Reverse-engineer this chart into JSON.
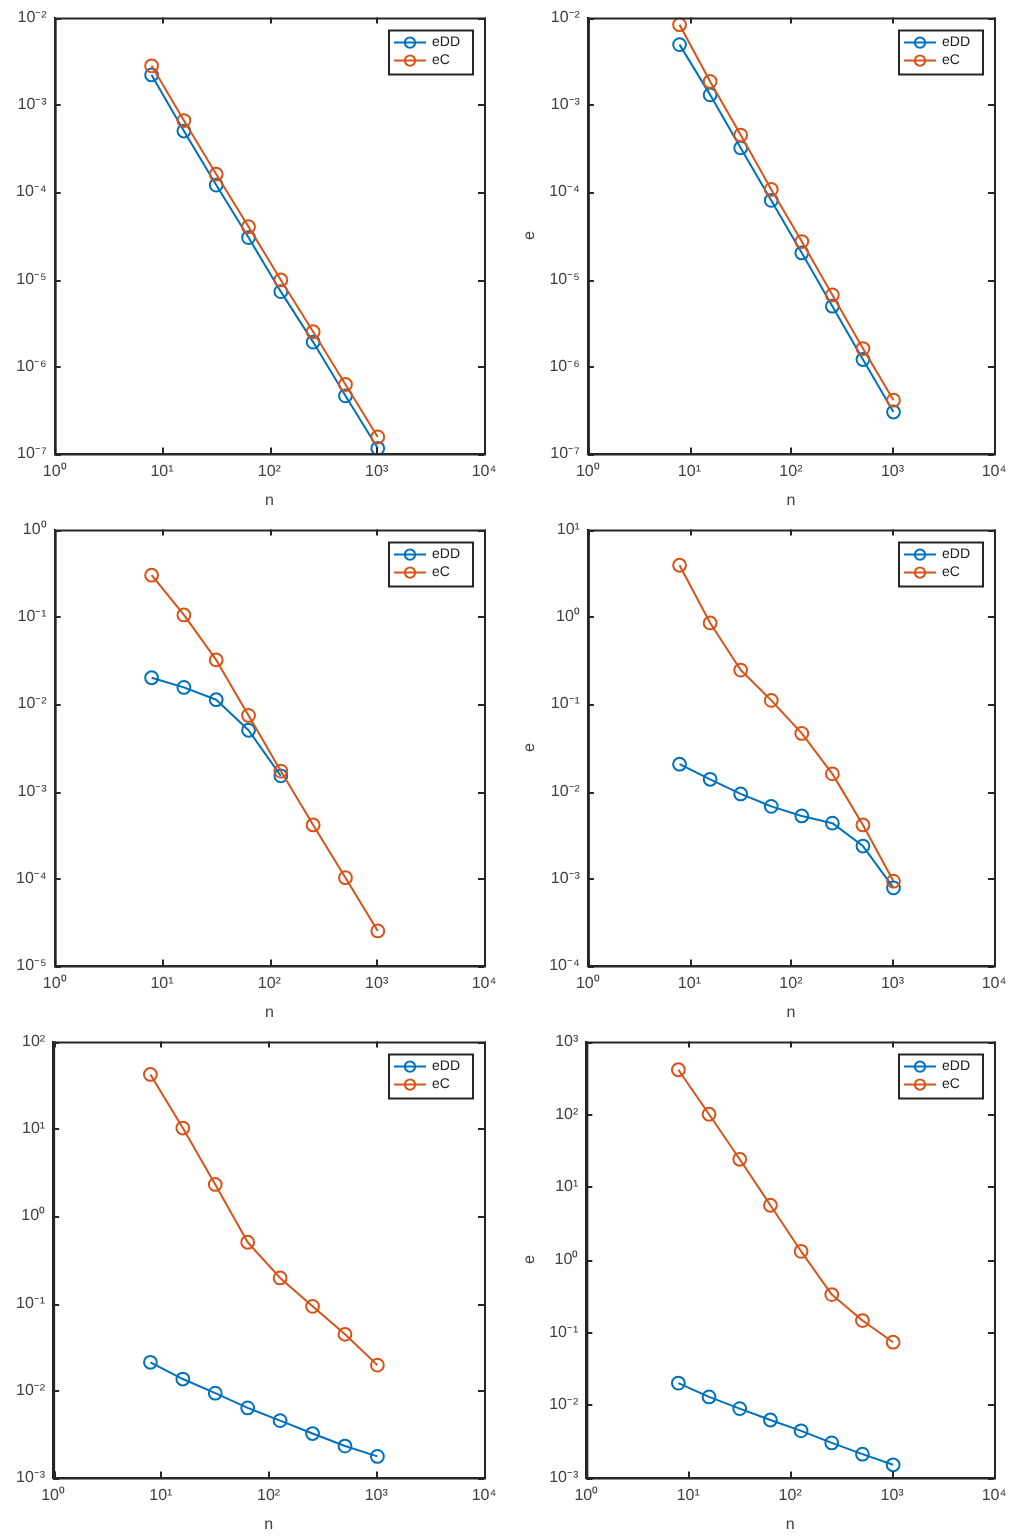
{
  "chart_data": [
    {
      "type": "line",
      "xlabel": "n",
      "log": "xy",
      "grid": false,
      "legend": "top right",
      "marker": "circle",
      "line_style": "solid",
      "x": [
        8,
        16,
        32,
        64,
        128,
        256,
        512,
        1024
      ],
      "xlim": [
        1,
        10000
      ],
      "xticks": [
        {
          "value": 1,
          "label": "10⁰"
        },
        {
          "value": 10,
          "label": "10¹"
        },
        {
          "value": 100,
          "label": "10²"
        },
        {
          "value": 1000,
          "label": "10³"
        },
        {
          "value": 10000,
          "label": "10⁴"
        }
      ],
      "ylim": [
        1e-07,
        0.01
      ],
      "yticks": [
        {
          "value": 1e-07,
          "label": "10⁻⁷"
        },
        {
          "value": 1e-06,
          "label": "10⁻⁶"
        },
        {
          "value": 1e-05,
          "label": "10⁻⁵"
        },
        {
          "value": 0.0001,
          "label": "10⁻⁴"
        },
        {
          "value": 0.001,
          "label": "10⁻³"
        },
        {
          "value": 0.01,
          "label": "10⁻²"
        }
      ],
      "series": [
        {
          "name": "eDD",
          "color": "#0072bd",
          "values": [
            0.0022,
            0.0005,
            0.00012,
            3e-05,
            7.2e-06,
            1.9e-06,
            4.6e-07,
            1.15e-07
          ]
        },
        {
          "name": "eC",
          "color": "#d95319",
          "values": [
            0.0028,
            0.00066,
            0.00016,
            4e-05,
            9.8e-06,
            2.5e-06,
            6.2e-07,
            1.55e-07
          ]
        }
      ]
    },
    {
      "type": "line",
      "xlabel": "n",
      "ylabel": "e",
      "log": "xy",
      "grid": false,
      "legend": "top right",
      "marker": "circle",
      "line_style": "solid",
      "x": [
        8,
        16,
        32,
        64,
        128,
        256,
        512,
        1024
      ],
      "xlim": [
        1,
        10000
      ],
      "xticks": [
        {
          "value": 1,
          "label": "10⁰"
        },
        {
          "value": 10,
          "label": "10¹"
        },
        {
          "value": 100,
          "label": "10²"
        },
        {
          "value": 1000,
          "label": "10³"
        },
        {
          "value": 10000,
          "label": "10⁴"
        }
      ],
      "ylim": [
        1e-07,
        0.01
      ],
      "yticks": [
        {
          "value": 1e-07,
          "label": "10⁻⁷"
        },
        {
          "value": 1e-06,
          "label": "10⁻⁶"
        },
        {
          "value": 1e-05,
          "label": "10⁻⁵"
        },
        {
          "value": 0.0001,
          "label": "10⁻⁴"
        },
        {
          "value": 0.001,
          "label": "10⁻³"
        },
        {
          "value": 0.01,
          "label": "10⁻²"
        }
      ],
      "series": [
        {
          "name": "eDD",
          "color": "#0072bd",
          "values": [
            0.0049,
            0.0013,
            0.00032,
            8e-05,
            2e-05,
            4.9e-06,
            1.2e-06,
            3e-07
          ]
        },
        {
          "name": "eC",
          "color": "#d95319",
          "values": [
            0.0083,
            0.00185,
            0.00045,
            0.000107,
            2.7e-05,
            6.6e-06,
            1.6e-06,
            4.1e-07
          ]
        }
      ]
    },
    {
      "type": "line",
      "xlabel": "n",
      "log": "xy",
      "grid": false,
      "legend": "top right",
      "marker": "circle",
      "line_style": "solid",
      "x": [
        8,
        16,
        32,
        64,
        128,
        256,
        512,
        1024
      ],
      "xlim": [
        1,
        10000
      ],
      "xticks": [
        {
          "value": 1,
          "label": "10⁰"
        },
        {
          "value": 10,
          "label": "10¹"
        },
        {
          "value": 100,
          "label": "10²"
        },
        {
          "value": 1000,
          "label": "10³"
        },
        {
          "value": 10000,
          "label": "10⁴"
        }
      ],
      "ylim": [
        1e-05,
        1
      ],
      "yticks": [
        {
          "value": 1e-05,
          "label": "10⁻⁵"
        },
        {
          "value": 0.0001,
          "label": "10⁻⁴"
        },
        {
          "value": 0.001,
          "label": "10⁻³"
        },
        {
          "value": 0.01,
          "label": "10⁻²"
        },
        {
          "value": 0.1,
          "label": "10⁻¹"
        },
        {
          "value": 1,
          "label": "10⁰"
        }
      ],
      "series": [
        {
          "name": "eDD",
          "color": "#0072bd",
          "values": [
            0.02,
            0.0155,
            0.0112,
            0.005,
            0.0015,
            null,
            null,
            null
          ]
        },
        {
          "name": "eC",
          "color": "#d95319",
          "values": [
            0.3,
            0.105,
            0.032,
            0.0074,
            0.0017,
            0.00041,
            0.000102,
            2.5e-05
          ]
        }
      ]
    },
    {
      "type": "line",
      "xlabel": "n",
      "ylabel": "e",
      "log": "xy",
      "grid": false,
      "legend": "top right",
      "marker": "circle",
      "line_style": "solid",
      "x": [
        8,
        16,
        32,
        64,
        128,
        256,
        512,
        1024
      ],
      "xlim": [
        1,
        10000
      ],
      "xticks": [
        {
          "value": 1,
          "label": "10⁰"
        },
        {
          "value": 10,
          "label": "10¹"
        },
        {
          "value": 100,
          "label": "10²"
        },
        {
          "value": 1000,
          "label": "10³"
        },
        {
          "value": 10000,
          "label": "10⁴"
        }
      ],
      "ylim": [
        0.0001,
        10
      ],
      "yticks": [
        {
          "value": 0.0001,
          "label": "10⁻⁴"
        },
        {
          "value": 0.001,
          "label": "10⁻³"
        },
        {
          "value": 0.01,
          "label": "10⁻²"
        },
        {
          "value": 0.1,
          "label": "10⁻¹"
        },
        {
          "value": 1,
          "label": "10⁰"
        },
        {
          "value": 10,
          "label": "10¹"
        }
      ],
      "series": [
        {
          "name": "eDD",
          "color": "#0072bd",
          "values": [
            0.0204,
            0.0137,
            0.0093,
            0.0067,
            0.0052,
            0.0043,
            0.00235,
            0.00078
          ]
        },
        {
          "name": "eC",
          "color": "#d95319",
          "values": [
            3.9,
            0.85,
            0.245,
            0.11,
            0.046,
            0.0158,
            0.0041,
            0.00093
          ]
        }
      ]
    },
    {
      "type": "line",
      "xlabel": "n",
      "log": "xy",
      "grid": false,
      "legend": "top right",
      "marker": "circle",
      "line_style": "solid",
      "x": [
        8,
        16,
        32,
        64,
        128,
        256,
        512,
        1024
      ],
      "xlim": [
        1,
        10000
      ],
      "xticks": [
        {
          "value": 1,
          "label": "10⁰"
        },
        {
          "value": 10,
          "label": "10¹"
        },
        {
          "value": 100,
          "label": "10²"
        },
        {
          "value": 1000,
          "label": "10³"
        },
        {
          "value": 10000,
          "label": "10⁴"
        }
      ],
      "ylim": [
        0.001,
        100
      ],
      "yticks": [
        {
          "value": 0.001,
          "label": "10⁻³"
        },
        {
          "value": 0.01,
          "label": "10⁻²"
        },
        {
          "value": 0.1,
          "label": "10⁻¹"
        },
        {
          "value": 1,
          "label": "10⁰"
        },
        {
          "value": 10,
          "label": "10¹"
        },
        {
          "value": 100,
          "label": "10²"
        }
      ],
      "series": [
        {
          "name": "eDD",
          "color": "#0072bd",
          "values": [
            0.021,
            0.0135,
            0.0093,
            0.0063,
            0.0045,
            0.0032,
            0.0023,
            0.00175
          ]
        },
        {
          "name": "eC",
          "color": "#d95319",
          "values": [
            42,
            10.2,
            2.3,
            0.5,
            0.195,
            0.092,
            0.044,
            0.0195
          ]
        }
      ]
    },
    {
      "type": "line",
      "xlabel": "n",
      "ylabel": "e",
      "log": "xy",
      "grid": false,
      "legend": "top right",
      "marker": "circle",
      "line_style": "solid",
      "x": [
        8,
        16,
        32,
        64,
        128,
        256,
        512,
        1024
      ],
      "xlim": [
        1,
        10000
      ],
      "xticks": [
        {
          "value": 1,
          "label": "10⁰"
        },
        {
          "value": 10,
          "label": "10¹"
        },
        {
          "value": 100,
          "label": "10²"
        },
        {
          "value": 1000,
          "label": "10³"
        },
        {
          "value": 10000,
          "label": "10⁴"
        }
      ],
      "ylim": [
        0.001,
        1000
      ],
      "yticks": [
        {
          "value": 0.001,
          "label": "10⁻³"
        },
        {
          "value": 0.01,
          "label": "10⁻²"
        },
        {
          "value": 0.1,
          "label": "10⁻¹"
        },
        {
          "value": 1,
          "label": "10⁰"
        },
        {
          "value": 10,
          "label": "10¹"
        },
        {
          "value": 100,
          "label": "10²"
        },
        {
          "value": 1000,
          "label": "10³"
        }
      ],
      "series": [
        {
          "name": "eDD",
          "color": "#0072bd",
          "values": [
            0.02,
            0.0129,
            0.0089,
            0.0062,
            0.0044,
            0.003,
            0.0021,
            0.0015
          ]
        },
        {
          "name": "eC",
          "color": "#d95319",
          "values": [
            410,
            100,
            24,
            5.6,
            1.3,
            0.33,
            0.145,
            0.073
          ]
        }
      ]
    }
  ]
}
